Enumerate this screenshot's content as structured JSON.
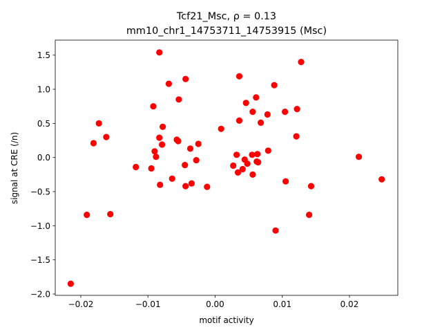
{
  "chart_data": {
    "type": "scatter",
    "title_line1": "Tcf21_Msc, ρ = 0.13",
    "title_line2": "mm10_chr1_14753711_14753915 (Msc)",
    "xlabel": "motif activity",
    "ylabel": "signal at CRE (/n)",
    "xlim": [
      -0.0238,
      0.0272
    ],
    "ylim": [
      -2.02,
      1.72
    ],
    "xticks": [
      {
        "value": -0.02,
        "label": "−0.02"
      },
      {
        "value": -0.01,
        "label": "−0.01"
      },
      {
        "value": 0.0,
        "label": "0.00"
      },
      {
        "value": 0.01,
        "label": "0.01"
      },
      {
        "value": 0.02,
        "label": "0.02"
      }
    ],
    "yticks": [
      {
        "value": -2.0,
        "label": "−2.0"
      },
      {
        "value": -1.5,
        "label": "−1.5"
      },
      {
        "value": -1.0,
        "label": "−1.0"
      },
      {
        "value": -0.5,
        "label": "−0.5"
      },
      {
        "value": 0.0,
        "label": "0.0"
      },
      {
        "value": 0.5,
        "label": "0.5"
      },
      {
        "value": 1.0,
        "label": "1.0"
      },
      {
        "value": 1.5,
        "label": "1.5"
      }
    ],
    "grid": false,
    "marker_color": "#ff0000",
    "points": [
      {
        "x": -0.0215,
        "y": -1.85
      },
      {
        "x": -0.0191,
        "y": -0.84
      },
      {
        "x": -0.0181,
        "y": 0.21
      },
      {
        "x": -0.0173,
        "y": 0.5
      },
      {
        "x": -0.0162,
        "y": 0.3
      },
      {
        "x": -0.0156,
        "y": -0.83
      },
      {
        "x": -0.0118,
        "y": -0.14
      },
      {
        "x": -0.0095,
        "y": -0.16
      },
      {
        "x": -0.0092,
        "y": 0.75
      },
      {
        "x": -0.009,
        "y": 0.09
      },
      {
        "x": -0.0088,
        "y": 0.01
      },
      {
        "x": -0.0083,
        "y": 1.54
      },
      {
        "x": -0.0083,
        "y": 0.29
      },
      {
        "x": -0.0082,
        "y": -0.4
      },
      {
        "x": -0.0079,
        "y": 0.19
      },
      {
        "x": -0.0078,
        "y": 0.45
      },
      {
        "x": -0.0069,
        "y": 1.08
      },
      {
        "x": -0.0064,
        "y": -0.31
      },
      {
        "x": -0.0057,
        "y": 0.26
      },
      {
        "x": -0.0055,
        "y": 0.24
      },
      {
        "x": -0.0054,
        "y": 0.85
      },
      {
        "x": -0.0045,
        "y": -0.11
      },
      {
        "x": -0.0044,
        "y": 1.15
      },
      {
        "x": -0.0044,
        "y": -0.42
      },
      {
        "x": -0.0037,
        "y": 0.13
      },
      {
        "x": -0.0035,
        "y": -0.38
      },
      {
        "x": -0.0028,
        "y": -0.04
      },
      {
        "x": -0.0025,
        "y": 0.2
      },
      {
        "x": -0.0012,
        "y": -0.43
      },
      {
        "x": 0.0009,
        "y": 0.42
      },
      {
        "x": 0.0027,
        "y": -0.12
      },
      {
        "x": 0.0032,
        "y": 0.04
      },
      {
        "x": 0.0034,
        "y": -0.22
      },
      {
        "x": 0.0036,
        "y": 1.19
      },
      {
        "x": 0.0036,
        "y": 0.54
      },
      {
        "x": 0.0041,
        "y": -0.17
      },
      {
        "x": 0.0044,
        "y": -0.03
      },
      {
        "x": 0.0046,
        "y": 0.8
      },
      {
        "x": 0.0048,
        "y": -0.09
      },
      {
        "x": 0.0055,
        "y": 0.04
      },
      {
        "x": 0.0056,
        "y": 0.67
      },
      {
        "x": 0.0056,
        "y": -0.25
      },
      {
        "x": 0.0061,
        "y": 0.88
      },
      {
        "x": 0.0062,
        "y": -0.06
      },
      {
        "x": 0.0063,
        "y": 0.05
      },
      {
        "x": 0.0064,
        "y": -0.07
      },
      {
        "x": 0.0068,
        "y": 0.51
      },
      {
        "x": 0.0078,
        "y": 0.63
      },
      {
        "x": 0.0079,
        "y": 0.1
      },
      {
        "x": 0.0088,
        "y": 1.06
      },
      {
        "x": 0.009,
        "y": -1.07
      },
      {
        "x": 0.0104,
        "y": 0.67
      },
      {
        "x": 0.0105,
        "y": -0.35
      },
      {
        "x": 0.0121,
        "y": 0.31
      },
      {
        "x": 0.0122,
        "y": 0.71
      },
      {
        "x": 0.0128,
        "y": 1.4
      },
      {
        "x": 0.014,
        "y": -0.84
      },
      {
        "x": 0.0143,
        "y": -0.42
      },
      {
        "x": 0.0214,
        "y": 0.01
      },
      {
        "x": 0.0248,
        "y": -0.32
      }
    ]
  }
}
